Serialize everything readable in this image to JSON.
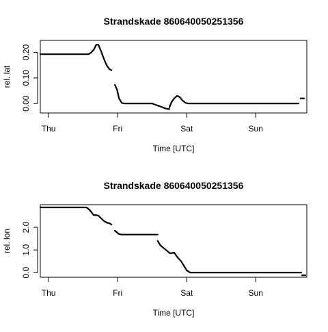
{
  "chart_data": [
    {
      "type": "line",
      "title": "Strandskade 860640050251356",
      "xlabel": "Time [UTC]",
      "ylabel": "rel. lat",
      "x_tick_labels": [
        "Thu",
        "Fri",
        "Sat",
        "Sun"
      ],
      "x_ticks": [
        0,
        1,
        2,
        3
      ],
      "xlim": [
        -0.12,
        3.74
      ],
      "ylim": [
        -0.037,
        0.247
      ],
      "y_ticks": [
        0.0,
        0.1,
        0.2
      ],
      "y_tick_labels": [
        "0.00",
        "0.10",
        "0.20"
      ],
      "grid": false,
      "segments": [
        {
          "x": [
            -0.12,
            0.58,
            0.62,
            0.66,
            0.69,
            0.72,
            0.76,
            0.8,
            0.84,
            0.88,
            0.91
          ],
          "y": [
            0.193,
            0.193,
            0.2,
            0.213,
            0.23,
            0.23,
            0.205,
            0.175,
            0.15,
            0.135,
            0.13
          ]
        },
        {
          "x": [
            0.96,
            0.99,
            1.02,
            1.06,
            1.1,
            1.2,
            1.3,
            1.5,
            1.55,
            1.6,
            1.7,
            1.75
          ],
          "y": [
            0.073,
            0.055,
            0.02,
            0.002,
            0.0,
            0.0,
            0.0,
            0.0,
            -0.005,
            -0.01,
            -0.02,
            -0.022
          ]
        },
        {
          "x": [
            1.75,
            1.78,
            1.82,
            1.86,
            1.9,
            1.94,
            1.98,
            2.02,
            2.1,
            2.4,
            2.8,
            3.2,
            3.5,
            3.62
          ],
          "y": [
            -0.015,
            0.005,
            0.02,
            0.03,
            0.025,
            0.012,
            0.003,
            0.0,
            0.0,
            0.0,
            0.0,
            0.0,
            0.0,
            0.0
          ]
        },
        {
          "x": [
            3.65,
            3.7
          ],
          "y": [
            0.02,
            0.02
          ]
        }
      ]
    },
    {
      "type": "line",
      "title": "Strandskade 860640050251356",
      "xlabel": "Time [UTC]",
      "ylabel": "rel. lon",
      "x_tick_labels": [
        "Thu",
        "Fri",
        "Sat",
        "Sun"
      ],
      "x_ticks": [
        0,
        1,
        2,
        3
      ],
      "xlim": [
        -0.12,
        3.74
      ],
      "ylim": [
        -0.205,
        3.0
      ],
      "y_ticks": [
        0.0,
        1.0,
        2.0
      ],
      "y_tick_labels": [
        "0.0",
        "1.0",
        "2.0"
      ],
      "grid": false,
      "segments": [
        {
          "x": [
            -0.12,
            0.55,
            0.6,
            0.65,
            0.72,
            0.76,
            0.8,
            0.85,
            0.88,
            0.91
          ],
          "y": [
            2.88,
            2.88,
            2.75,
            2.55,
            2.52,
            2.4,
            2.28,
            2.2,
            2.18,
            2.12
          ]
        },
        {
          "x": [
            0.96,
            1.02,
            1.06,
            1.2,
            1.4,
            1.58
          ],
          "y": [
            1.85,
            1.7,
            1.68,
            1.68,
            1.68,
            1.68
          ]
        },
        {
          "x": [
            1.58,
            1.62,
            1.66,
            1.72,
            1.76,
            1.82,
            1.86,
            1.92,
            1.96,
            2.0,
            2.05,
            2.4,
            2.8,
            3.2,
            3.6,
            3.66
          ],
          "y": [
            1.4,
            1.2,
            1.1,
            0.95,
            0.85,
            0.88,
            0.7,
            0.5,
            0.3,
            0.1,
            0.0,
            0.0,
            0.0,
            0.0,
            0.0,
            0.0
          ]
        },
        {
          "x": [
            3.67,
            3.72
          ],
          "y": [
            -0.12,
            -0.12
          ]
        }
      ]
    }
  ]
}
